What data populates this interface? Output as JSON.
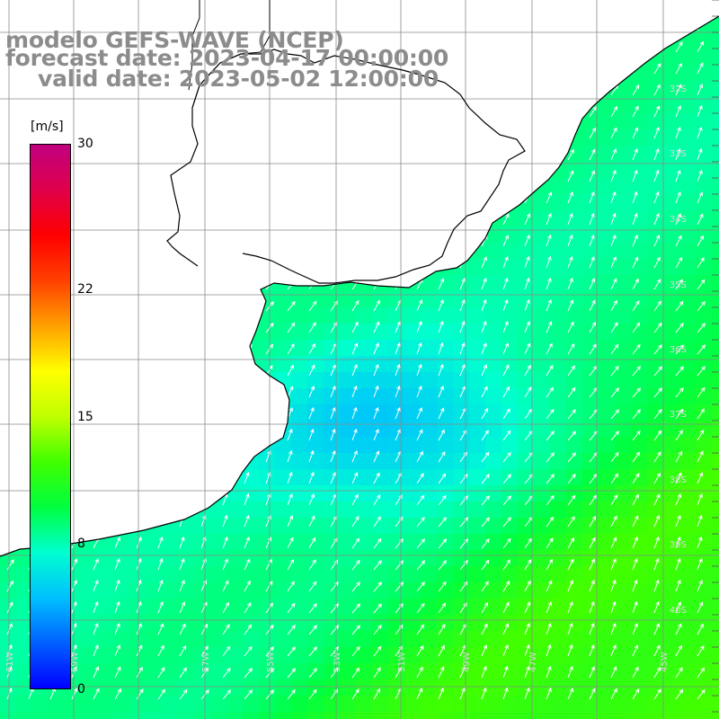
{
  "title": {
    "line1": "modelo GEFS-WAVE (NCEP)",
    "line2": "forecast date: 2023-04-17 00:00:00",
    "line3": "valid date: 2023-05-02 12:00:00"
  },
  "colorbar": {
    "unit": "[m/s]",
    "min": 0,
    "max": 30,
    "ticks": [
      {
        "value": 30,
        "label": "30"
      },
      {
        "value": 22,
        "label": "22"
      },
      {
        "value": 15,
        "label": "15"
      },
      {
        "value": 8,
        "label": "8"
      },
      {
        "value": 0,
        "label": "0"
      }
    ],
    "colors": [
      "#0000ff",
      "#0060ff",
      "#00c0ff",
      "#00ffd0",
      "#00ff40",
      "#40ff00",
      "#c0ff00",
      "#ffff00",
      "#ffa000",
      "#ff4000",
      "#ff0000",
      "#e0004a",
      "#c00080"
    ]
  },
  "map": {
    "lat_labels": [
      "32S",
      "33S",
      "34S",
      "35S",
      "36S",
      "37S",
      "38S",
      "39S",
      "40S"
    ],
    "lon_labels": [
      "61W",
      "59W",
      "57W",
      "55W",
      "53W",
      "51W",
      "49W",
      "47W",
      "45W"
    ],
    "land_color": "#ffffff",
    "grid_color": "#8a8a8a",
    "coast_color": "#000000",
    "arrow_color": "#ffffff"
  },
  "chart_data": {
    "type": "heatmap",
    "variable": "wind speed",
    "unit": "m/s",
    "color_range": [
      0,
      30
    ],
    "speed_range_shown": [
      6,
      12
    ],
    "lon_range": [
      "62W",
      "44W"
    ],
    "lat_range": [
      "31S",
      "41S"
    ]
  }
}
